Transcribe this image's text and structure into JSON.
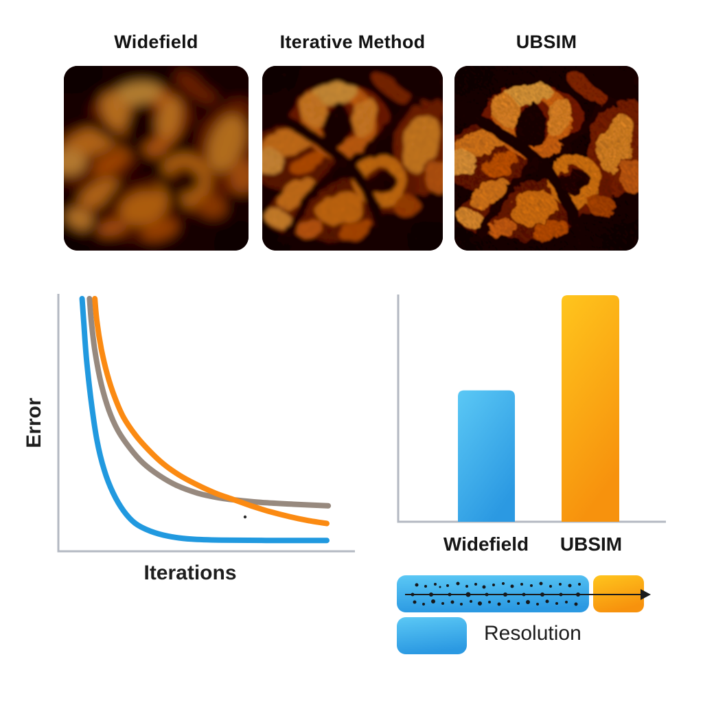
{
  "figure": {
    "panels": [
      {
        "title": "Widefield",
        "image_alt": "blurred fluorescence micrograph, orange glowing cells on dark red background"
      },
      {
        "title": "Iterative Method",
        "image_alt": "partially sharpened fluorescence micrograph of the same cells"
      },
      {
        "title": "UBSIM",
        "image_alt": "sharp high-resolution fluorescence micrograph of the same cells"
      }
    ],
    "micrograph_palette": {
      "background": "#1b0301",
      "dim": "#7e1c03",
      "bright": "#f58414",
      "highlight": "#ffb347"
    }
  },
  "chart_data": [
    {
      "id": "error_vs_iterations",
      "type": "line",
      "title": "",
      "xlabel": "Iterations",
      "ylabel": "Error",
      "x_ticks": [],
      "y_ticks": [],
      "grid": false,
      "legend": "none",
      "note": "schematic convergence curves, no numeric axis labels; x and y given as percent of plot box (y=0 top / max error, y=100 baseline)",
      "series": [
        {
          "name": "gray",
          "color": "#97897E",
          "points": [
            [
              10.5,
              0
            ],
            [
              11.2,
              10
            ],
            [
              12.5,
              22
            ],
            [
              14.5,
              34
            ],
            [
              17,
              44
            ],
            [
              20,
              52
            ],
            [
              24,
              59
            ],
            [
              28.5,
              65
            ],
            [
              34,
              70
            ],
            [
              40,
              74
            ],
            [
              47,
              77
            ],
            [
              54,
              78.8
            ],
            [
              62,
              80
            ],
            [
              70,
              80.8
            ],
            [
              80,
              81.4
            ],
            [
              91,
              82
            ]
          ]
        },
        {
          "name": "orange",
          "color": "#FB8A12",
          "points": [
            [
              12.3,
              0
            ],
            [
              13,
              9
            ],
            [
              14.5,
              20
            ],
            [
              16.5,
              30
            ],
            [
              19,
              39
            ],
            [
              22,
              47
            ],
            [
              26,
              54
            ],
            [
              30.5,
              60
            ],
            [
              35.5,
              65.5
            ],
            [
              41,
              70
            ],
            [
              47,
              73.8
            ],
            [
              53,
              77
            ],
            [
              59,
              79.5
            ],
            [
              65,
              82
            ],
            [
              71,
              84.2
            ],
            [
              78,
              86.3
            ],
            [
              84,
              87.8
            ],
            [
              90.5,
              89
            ]
          ]
        },
        {
          "name": "blue",
          "color": "#2199DF",
          "points": [
            [
              8,
              0
            ],
            [
              8.6,
              10
            ],
            [
              9.5,
              24
            ],
            [
              11,
              40
            ],
            [
              13,
              56
            ],
            [
              15.5,
              68
            ],
            [
              18.5,
              77
            ],
            [
              22,
              84
            ],
            [
              26,
              89
            ],
            [
              31,
              92
            ],
            [
              37,
              94
            ],
            [
              45,
              95.2
            ],
            [
              55,
              95.6
            ],
            [
              70,
              95.7
            ],
            [
              90.5,
              95.7
            ]
          ]
        }
      ],
      "stray_dot": [
        357,
        753
      ]
    },
    {
      "id": "resolution_bars",
      "type": "bar",
      "title": "",
      "categories": [
        "Widefield",
        "UBSIM"
      ],
      "values": [
        0.58,
        1.0
      ],
      "xlabel": "",
      "ylabel": "",
      "y_ticks": [],
      "note": "relative bar heights, no numeric axis shown",
      "bar_colors": [
        [
          "#5BC8F5",
          "#2B99E2"
        ],
        [
          "#FFC51D",
          "#F7920D"
        ]
      ]
    }
  ],
  "resolution": {
    "label": "Resolution",
    "arrow_color": "#1b1b1b",
    "dots": [
      [
        607,
        852,
        2.5
      ],
      [
        620,
        854,
        2
      ],
      [
        634,
        851,
        2
      ],
      [
        641,
        855,
        1.5
      ],
      [
        652,
        853,
        2
      ],
      [
        667,
        850,
        2.5
      ],
      [
        680,
        854,
        2
      ],
      [
        693,
        851,
        2
      ],
      [
        705,
        855,
        2.5
      ],
      [
        719,
        852,
        2
      ],
      [
        733,
        850,
        2
      ],
      [
        746,
        854,
        2.5
      ],
      [
        760,
        851,
        2
      ],
      [
        774,
        853,
        2
      ],
      [
        788,
        850,
        2.5
      ],
      [
        802,
        854,
        2
      ],
      [
        816,
        851,
        2
      ],
      [
        830,
        853,
        2.5
      ],
      [
        844,
        851,
        2
      ],
      [
        604,
        877,
        2.5
      ],
      [
        617,
        880,
        2
      ],
      [
        631,
        876,
        3
      ],
      [
        645,
        879,
        2
      ],
      [
        659,
        877,
        2.5
      ],
      [
        672,
        880,
        2
      ],
      [
        686,
        876,
        2
      ],
      [
        699,
        879,
        3
      ],
      [
        713,
        877,
        2
      ],
      [
        727,
        880,
        2.5
      ],
      [
        741,
        876,
        2
      ],
      [
        755,
        879,
        2
      ],
      [
        769,
        877,
        3
      ],
      [
        783,
        880,
        2
      ],
      [
        797,
        876,
        2.5
      ],
      [
        811,
        879,
        2
      ],
      [
        825,
        877,
        2
      ],
      [
        839,
        880,
        2.5
      ],
      [
        601,
        866,
        2.5
      ],
      [
        628,
        866,
        3
      ],
      [
        655,
        866,
        2.5
      ],
      [
        682,
        866,
        3.5
      ],
      [
        709,
        866,
        2.5
      ],
      [
        736,
        866,
        3
      ],
      [
        763,
        866,
        2.5
      ],
      [
        790,
        866,
        3
      ],
      [
        817,
        866,
        2.5
      ],
      [
        842,
        866,
        3
      ]
    ]
  },
  "colors": {
    "axis_gray": "#b3b8c2",
    "bar_blue_light": "#5BC8F5",
    "bar_blue_dark": "#2B99E2",
    "bar_orange_light": "#FFC51D",
    "bar_orange_dark": "#F7920D",
    "arrow_black": "#1b1b1b",
    "text": "#141414"
  }
}
